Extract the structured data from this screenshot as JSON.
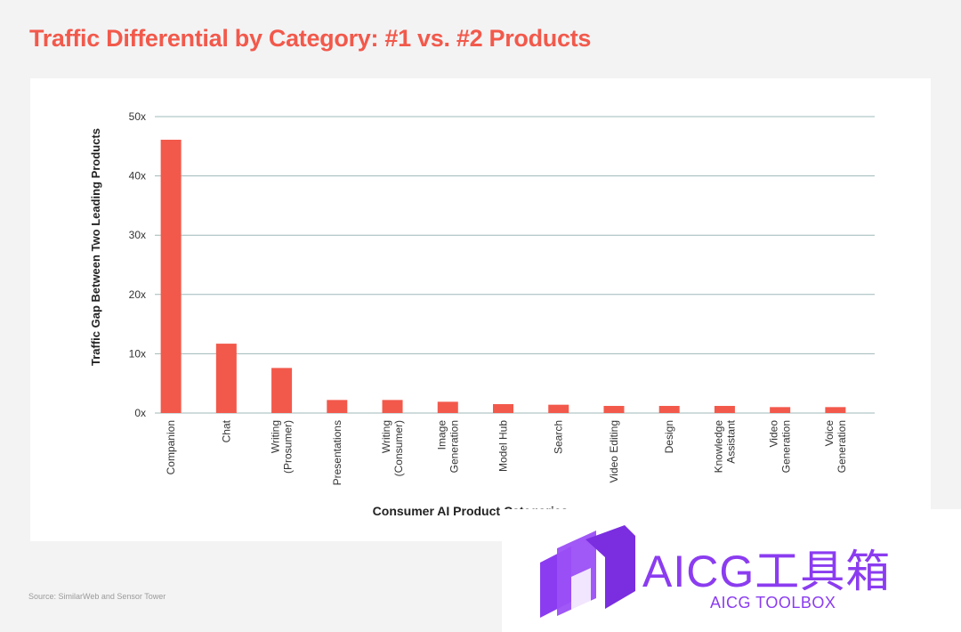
{
  "chart_data": {
    "type": "bar",
    "title": "Traffic Differential by Category: #1 vs. #2 Products",
    "ylabel": "Traffic Gap Between Two Leading Products",
    "xlabel": "Consumer AI Product Categories",
    "ylim": [
      0,
      50
    ],
    "yticks": [
      "0x",
      "10x",
      "20x",
      "30x",
      "40x",
      "50x"
    ],
    "ytick_values": [
      0,
      10,
      20,
      30,
      40,
      50
    ],
    "grid": true,
    "bar_color": "#f2594b",
    "categories": [
      [
        "Companion"
      ],
      [
        "Chat"
      ],
      [
        "Writing",
        "(Prosumer)"
      ],
      [
        "Presentations"
      ],
      [
        "Writing",
        "(Consumer)"
      ],
      [
        "Image",
        "Generation"
      ],
      [
        "Model Hub"
      ],
      [
        "Search"
      ],
      [
        "Video Editing"
      ],
      [
        "Design"
      ],
      [
        "Knowledge",
        "Assistant"
      ],
      [
        "Video",
        "Generation"
      ],
      [
        "Voice",
        "Generation"
      ]
    ],
    "values": [
      46.1,
      11.7,
      7.6,
      2.2,
      2.2,
      1.9,
      1.5,
      1.4,
      1.2,
      1.2,
      1.2,
      1.0,
      1.0
    ]
  },
  "source": "Source: SimilarWeb and Sensor Tower",
  "watermark": {
    "brand": "AICG工具箱",
    "sub": "AICG TOOLBOX"
  },
  "colors": {
    "title": "#f2594b",
    "grid": "#9fb8b8",
    "watermark": "#8b3cf0"
  }
}
